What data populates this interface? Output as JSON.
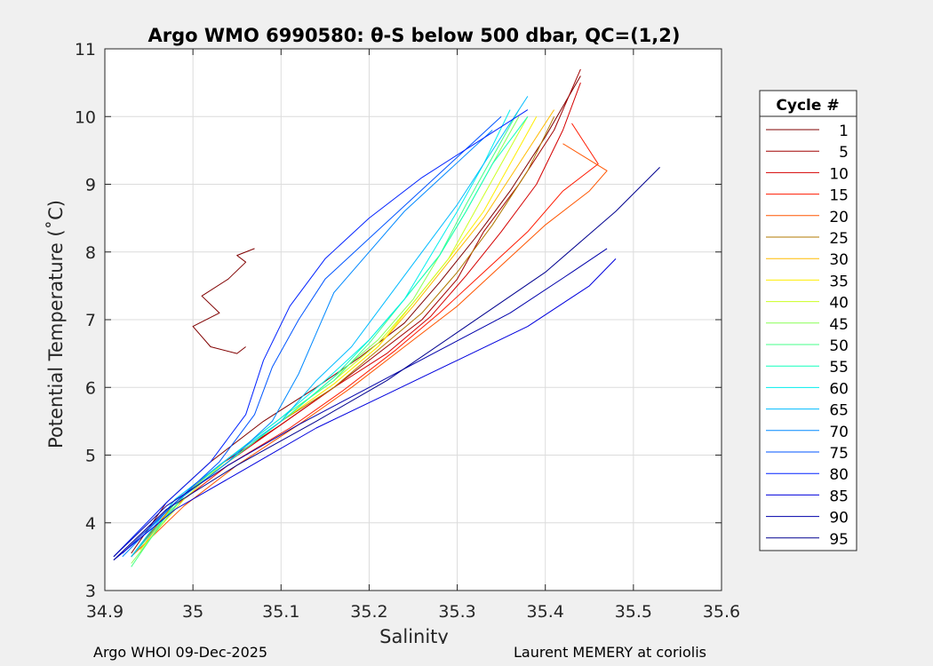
{
  "chart_data": {
    "type": "line",
    "title": "Argo WMO 6990580: θ-S below 500 dbar,  QC=(1,2)",
    "xlabel": "Salinity",
    "ylabel": "Potential Temperature (˚C)",
    "xlim": [
      34.9,
      35.6
    ],
    "ylim": [
      3,
      11
    ],
    "xticks": [
      34.9,
      35.0,
      35.1,
      35.2,
      35.3,
      35.4,
      35.5,
      35.6
    ],
    "xtick_labels": [
      "34.9",
      "35",
      "35.1",
      "35.2",
      "35.3",
      "35.4",
      "35.5",
      "35.6"
    ],
    "yticks": [
      3,
      4,
      5,
      6,
      7,
      8,
      9,
      10,
      11
    ],
    "ytick_labels": [
      "3",
      "4",
      "5",
      "6",
      "7",
      "8",
      "9",
      "10",
      "11"
    ],
    "grid": true,
    "legend": {
      "title": "Cycle #",
      "placement": "right-outside",
      "entries": [
        {
          "label": "1",
          "color": "#800000"
        },
        {
          "label": "5",
          "color": "#a00000"
        },
        {
          "label": "10",
          "color": "#d40000"
        },
        {
          "label": "15",
          "color": "#ff1a00"
        },
        {
          "label": "20",
          "color": "#ff5500"
        },
        {
          "label": "25",
          "color": "#b07800"
        },
        {
          "label": "30",
          "color": "#ffbb00"
        },
        {
          "label": "35",
          "color": "#ffee00"
        },
        {
          "label": "40",
          "color": "#ccff22"
        },
        {
          "label": "45",
          "color": "#88ff55"
        },
        {
          "label": "50",
          "color": "#44ff88"
        },
        {
          "label": "55",
          "color": "#11ffbb"
        },
        {
          "label": "60",
          "color": "#00eeee"
        },
        {
          "label": "65",
          "color": "#00bbff"
        },
        {
          "label": "70",
          "color": "#0088ff"
        },
        {
          "label": "75",
          "color": "#0055ff"
        },
        {
          "label": "80",
          "color": "#0022ff"
        },
        {
          "label": "85",
          "color": "#0000dd"
        },
        {
          "label": "90",
          "color": "#0000aa"
        },
        {
          "label": "95",
          "color": "#00008f"
        }
      ]
    },
    "series": [
      {
        "name": "1",
        "color": "#800000",
        "x": [
          34.93,
          34.97,
          35.02,
          35.08,
          35.14,
          35.19,
          35.24,
          35.28,
          35.32,
          35.36,
          35.4,
          35.44
        ],
        "y": [
          3.55,
          4.3,
          4.9,
          5.5,
          6.0,
          6.45,
          6.95,
          7.55,
          8.2,
          8.9,
          9.7,
          10.6
        ]
      },
      {
        "name": "1b",
        "color": "#800000",
        "x": [
          35.06,
          35.05,
          35.02,
          35.0,
          35.03,
          35.01,
          35.04,
          35.06,
          35.05,
          35.07
        ],
        "y": [
          6.6,
          6.5,
          6.6,
          6.9,
          7.1,
          7.35,
          7.6,
          7.85,
          7.95,
          8.05
        ]
      },
      {
        "name": "5",
        "color": "#a00000",
        "x": [
          34.93,
          34.98,
          35.03,
          35.1,
          35.16,
          35.21,
          35.26,
          35.3,
          35.33,
          35.37,
          35.41,
          35.44
        ],
        "y": [
          3.5,
          4.3,
          4.85,
          5.45,
          6.0,
          6.5,
          7.0,
          7.6,
          8.3,
          9.0,
          9.8,
          10.7
        ]
      },
      {
        "name": "10",
        "color": "#d40000",
        "x": [
          34.92,
          34.98,
          35.04,
          35.1,
          35.16,
          35.22,
          35.27,
          35.31,
          35.35,
          35.39,
          35.42,
          35.44
        ],
        "y": [
          3.55,
          4.3,
          4.9,
          5.45,
          6.0,
          6.5,
          7.05,
          7.65,
          8.3,
          9.0,
          9.8,
          10.5
        ]
      },
      {
        "name": "15",
        "color": "#ff1a00",
        "x": [
          34.93,
          34.98,
          35.04,
          35.11,
          35.17,
          35.23,
          35.28,
          35.33,
          35.38,
          35.42,
          35.46,
          35.43
        ],
        "y": [
          3.5,
          4.25,
          4.85,
          5.4,
          5.95,
          6.55,
          7.1,
          7.7,
          8.3,
          8.9,
          9.3,
          9.9
        ]
      },
      {
        "name": "20",
        "color": "#ff5500",
        "x": [
          34.93,
          34.99,
          35.05,
          35.12,
          35.18,
          35.24,
          35.3,
          35.35,
          35.4,
          35.45,
          35.47,
          35.42
        ],
        "y": [
          3.5,
          4.25,
          4.85,
          5.45,
          6.0,
          6.6,
          7.2,
          7.8,
          8.4,
          8.9,
          9.2,
          9.6
        ]
      },
      {
        "name": "25",
        "color": "#b07800",
        "x": [
          34.93,
          34.98,
          35.04,
          35.1,
          35.16,
          35.21,
          35.26,
          35.3,
          35.34,
          35.38,
          35.41
        ],
        "y": [
          3.5,
          4.3,
          4.9,
          5.5,
          6.0,
          6.55,
          7.1,
          7.7,
          8.4,
          9.2,
          10.0
        ]
      },
      {
        "name": "30",
        "color": "#ffbb00",
        "x": [
          34.94,
          34.98,
          35.04,
          35.1,
          35.16,
          35.21,
          35.25,
          35.29,
          35.33,
          35.37,
          35.41
        ],
        "y": [
          3.6,
          4.3,
          4.9,
          5.5,
          6.05,
          6.6,
          7.2,
          7.85,
          8.5,
          9.3,
          10.1
        ]
      },
      {
        "name": "35",
        "color": "#ffee00",
        "x": [
          34.94,
          34.98,
          35.04,
          35.1,
          35.16,
          35.21,
          35.25,
          35.29,
          35.33,
          35.36,
          35.39
        ],
        "y": [
          3.55,
          4.3,
          4.9,
          5.5,
          6.05,
          6.6,
          7.25,
          7.9,
          8.6,
          9.3,
          10.0
        ]
      },
      {
        "name": "40",
        "color": "#ccff22",
        "x": [
          34.94,
          34.99,
          35.04,
          35.1,
          35.16,
          35.21,
          35.25,
          35.29,
          35.32,
          35.35,
          35.38
        ],
        "y": [
          3.6,
          4.35,
          4.95,
          5.55,
          6.1,
          6.65,
          7.25,
          7.9,
          8.6,
          9.3,
          10.0
        ]
      },
      {
        "name": "45",
        "color": "#88ff55",
        "x": [
          34.93,
          34.99,
          35.05,
          35.11,
          35.16,
          35.21,
          35.25,
          35.28,
          35.31,
          35.34,
          35.37
        ],
        "y": [
          3.4,
          4.4,
          5.0,
          5.6,
          6.15,
          6.7,
          7.3,
          7.95,
          8.6,
          9.3,
          10.0
        ]
      },
      {
        "name": "50",
        "color": "#44ff88",
        "x": [
          34.93,
          34.98,
          35.04,
          35.1,
          35.16,
          35.2,
          35.24,
          35.28,
          35.31,
          35.34,
          35.37
        ],
        "y": [
          3.35,
          4.3,
          4.95,
          5.55,
          6.1,
          6.65,
          7.3,
          7.95,
          8.7,
          9.4,
          10.1
        ]
      },
      {
        "name": "55",
        "color": "#11ffbb",
        "x": [
          34.93,
          34.99,
          35.05,
          35.11,
          35.16,
          35.2,
          35.24,
          35.28,
          35.31,
          35.34,
          35.38
        ],
        "y": [
          3.5,
          4.4,
          5.0,
          5.6,
          6.15,
          6.7,
          7.3,
          7.95,
          8.6,
          9.3,
          10.0
        ]
      },
      {
        "name": "60",
        "color": "#00eeee",
        "x": [
          34.93,
          34.98,
          35.04,
          35.1,
          35.15,
          35.2,
          35.24,
          35.27,
          35.3,
          35.33,
          35.36
        ],
        "y": [
          3.5,
          4.35,
          4.95,
          5.55,
          6.1,
          6.7,
          7.3,
          7.95,
          8.6,
          9.3,
          10.1
        ]
      },
      {
        "name": "65",
        "color": "#00bbff",
        "x": [
          34.93,
          34.98,
          35.04,
          35.1,
          35.14,
          35.18,
          35.22,
          35.26,
          35.3,
          35.34,
          35.38
        ],
        "y": [
          3.5,
          4.35,
          4.95,
          5.5,
          6.1,
          6.6,
          7.3,
          8.0,
          8.7,
          9.5,
          10.3
        ]
      },
      {
        "name": "70",
        "color": "#0088ff",
        "x": [
          34.92,
          34.98,
          35.04,
          35.09,
          35.12,
          35.14,
          35.16,
          35.2,
          35.24,
          35.29,
          35.34
        ],
        "y": [
          3.5,
          4.3,
          4.9,
          5.5,
          6.2,
          6.8,
          7.4,
          8.0,
          8.6,
          9.2,
          9.8
        ]
      },
      {
        "name": "75",
        "color": "#0055ff",
        "x": [
          34.92,
          34.98,
          35.03,
          35.07,
          35.09,
          35.12,
          35.15,
          35.2,
          35.25,
          35.3,
          35.35
        ],
        "y": [
          3.55,
          4.3,
          4.9,
          5.6,
          6.3,
          7.0,
          7.6,
          8.2,
          8.8,
          9.4,
          10.0
        ]
      },
      {
        "name": "80",
        "color": "#0022ff",
        "x": [
          34.91,
          34.97,
          35.02,
          35.06,
          35.08,
          35.11,
          35.15,
          35.2,
          35.26,
          35.32,
          35.38
        ],
        "y": [
          3.5,
          4.3,
          4.9,
          5.6,
          6.4,
          7.2,
          7.9,
          8.5,
          9.1,
          9.6,
          10.1
        ]
      },
      {
        "name": "85",
        "color": "#0000dd",
        "x": [
          34.91,
          34.98,
          35.06,
          35.14,
          35.22,
          35.3,
          35.38,
          35.45,
          35.48
        ],
        "y": [
          3.45,
          4.2,
          4.8,
          5.4,
          5.9,
          6.4,
          6.9,
          7.5,
          7.9
        ]
      },
      {
        "name": "90",
        "color": "#0000aa",
        "x": [
          34.91,
          34.97,
          35.04,
          35.12,
          35.2,
          35.28,
          35.36,
          35.43,
          35.47
        ],
        "y": [
          3.5,
          4.25,
          4.85,
          5.45,
          6.0,
          6.55,
          7.1,
          7.7,
          8.05
        ]
      },
      {
        "name": "95",
        "color": "#00008f",
        "x": [
          34.91,
          34.97,
          35.05,
          35.14,
          35.22,
          35.31,
          35.4,
          35.48,
          35.53
        ],
        "y": [
          3.45,
          4.2,
          4.85,
          5.5,
          6.1,
          6.9,
          7.7,
          8.6,
          9.25
        ]
      }
    ]
  },
  "footer": {
    "left": "Argo WHOI 09-Dec-2025",
    "right": "Laurent MEMERY at coriolis"
  }
}
